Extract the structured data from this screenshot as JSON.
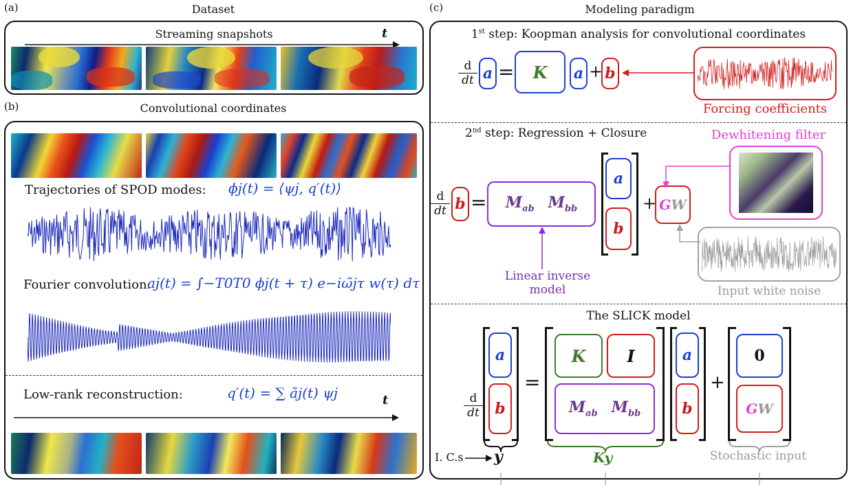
{
  "panels": {
    "a": {
      "tag": "(a)",
      "title": "Dataset",
      "subtitle": "Streaming snapshots",
      "t_label": "t"
    },
    "b": {
      "tag": "(b)",
      "title": "Convolutional coordinates",
      "traj_label": "Trajectories of SPOD modes:",
      "traj_eq": "ϕj(t) = ⟨ψj, q′(t)⟩",
      "fourier_label": "Fourier convolution:",
      "fourier_eq": "aj(t) = ∫−T0T0 ϕj(t + τ) e−iω̃jτ w(τ) dτ",
      "lowrank_label": "Low-rank reconstruction:",
      "lowrank_eq": "q′(t) = ∑ ãj(t) ψj",
      "t_label": "t"
    },
    "c": {
      "tag": "(c)",
      "title": "Modeling paradigm",
      "step1": {
        "sup": "st",
        "num": "1",
        "text": " step: Koopman analysis for convolutional coordinates",
        "a": "a",
        "K": "K",
        "b": "b",
        "forcing": "Forcing coefficients"
      },
      "step2": {
        "sup": "nd",
        "num": "2",
        "text": " step: Regression + Closure",
        "b": "b",
        "Mab": "Mab",
        "Mbb": "Mbb",
        "a": "a",
        "GW_G": "G",
        "GW_W": "W",
        "dewhitening": "Dewhitening filter",
        "lim": "Linear inverse model",
        "white_noise": "Input white noise"
      },
      "slick": {
        "title": "The SLICK model",
        "K": "K",
        "I": "I",
        "Mab": "Mab",
        "Mbb": "Mbb",
        "a": "a",
        "b": "b",
        "zero": "0",
        "GW_G": "G",
        "GW_W": "W",
        "ics": "I. C.s",
        "y": "y",
        "Ky": "Ky",
        "stochastic": "Stochastic input"
      },
      "d": "d",
      "dt": "dt",
      "plus": "+",
      "equals": "="
    }
  },
  "colors": {
    "blue": "#1a3fd1",
    "red": "#d21b1b",
    "green": "#3e7a2a",
    "purple": "#8a2bd6",
    "magenta": "#e43fd4",
    "gray": "#a0a0a0"
  }
}
